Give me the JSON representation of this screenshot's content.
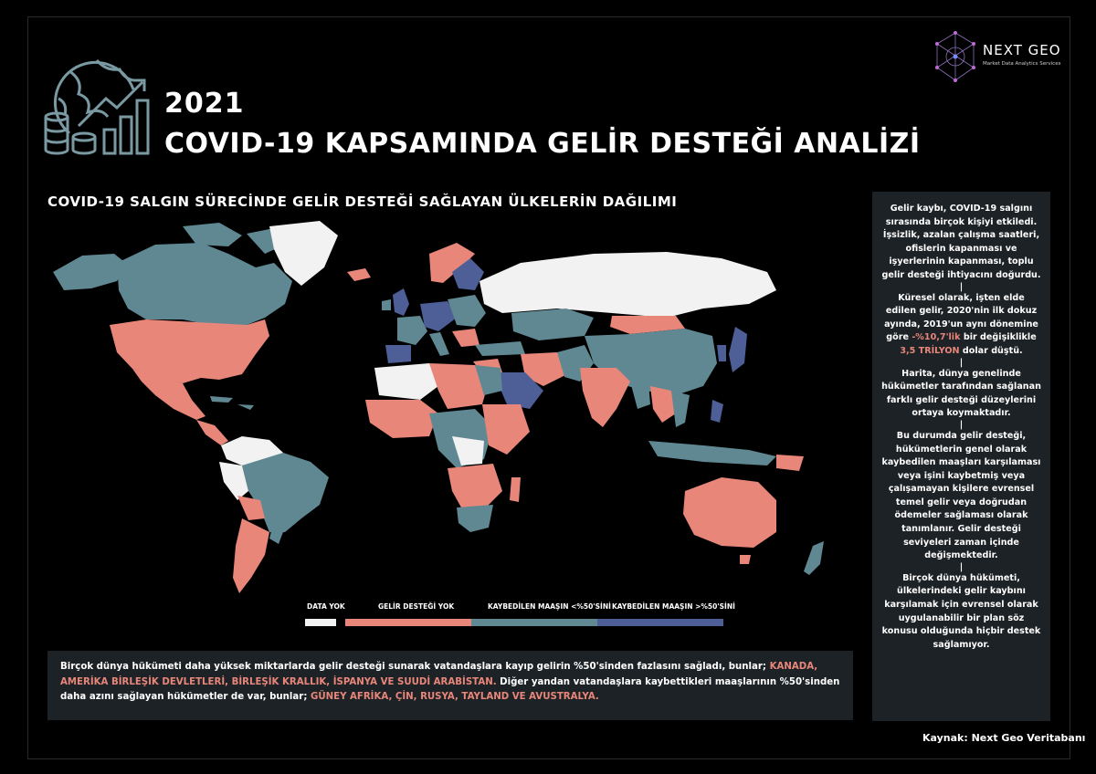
{
  "header": {
    "year": "2021",
    "title": "COVID-19 KAPSAMINDA GELİR DESTEĞİ ANALİZİ"
  },
  "brand": {
    "name": "NEXT GEO",
    "tagline": "Market Data Analytics Services"
  },
  "map": {
    "subtitle": "COVID-19 SALGIN SÜRECİNDE GELİR DESTEĞİ SAĞLAYAN ÜLKELERİN DAĞILIMI",
    "colors": {
      "no_data": "#f2f2f2",
      "no_support": "#e8867a",
      "under_50": "#5f8893",
      "over_50": "#4d5f96",
      "background": "#000000"
    },
    "legend": [
      {
        "label": "DATA YOK",
        "color": "#f2f2f2"
      },
      {
        "label": "GELİR DESTEĞİ YOK",
        "color": "#e8867a"
      },
      {
        "label": "KAYBEDİLEN MAAŞIN <%50'SİNİ",
        "color": "#5f8893"
      },
      {
        "label": "KAYBEDİLEN MAAŞIN >%50'SİNİ",
        "color": "#4d5f96"
      }
    ]
  },
  "bottom_text": {
    "part1": "Birçok dünya hükümeti daha yüksek miktarlarda gelir desteği sunarak vatandaşlara kayıp gelirin %50'sinden fazlasını sağladı, bunlar; ",
    "highlight1": "KANADA, AMERİKA BİRLEŞİK DEVLETLERİ, BİRLEŞİK KRALLIK, İSPANYA VE SUUDİ ARABİSTAN.",
    "part2": " Diğer yandan vatandaşlara kaybettikleri maaşlarının %50'sinden daha azını sağlayan hükümetler de var, bunlar; ",
    "highlight2": "GÜNEY AFRİKA, ÇİN, RUSYA, TAYLAND VE AVUSTRALYA."
  },
  "side_panel": {
    "p1": "Gelir kaybı, COVID-19 salgını sırasında birçok kişiyi etkiledi. İşsizlik, azalan çalışma saatleri, ofislerin kapanması ve işyerlerinin kapanması, toplu gelir desteği ihtiyacını doğurdu.",
    "p2_a": "Küresel olarak, işten elde edilen gelir, 2020'nin ilk dokuz ayında, 2019'un aynı dönemine göre ",
    "p2_h1": "-%10,7'lik",
    "p2_b": " bir değişiklikle ",
    "p2_h2": "3,5 TRİLYON",
    "p2_c": " dolar düştü.",
    "p3": "Harita, dünya genelinde hükümetler tarafından sağlanan farklı gelir desteği düzeylerini ortaya koymaktadır.",
    "p4": "Bu durumda gelir desteği, hükümetlerin genel olarak kaybedilen maaşları karşılaması veya işini kaybetmiş veya çalışamayan kişilere evrensel temel gelir veya doğrudan ödemeler sağlaması olarak tanımlanır. Gelir desteği seviyeleri zaman içinde değişmektedir.",
    "p5": "Birçok dünya hükümeti, ülkelerindeki gelir kaybını karşılamak için evrensel olarak uygulanabilir bir plan söz konusu olduğunda hiçbir destek sağlamıyor.",
    "separator": "|"
  },
  "source": "Kaynak: Next Geo Veritabanı"
}
